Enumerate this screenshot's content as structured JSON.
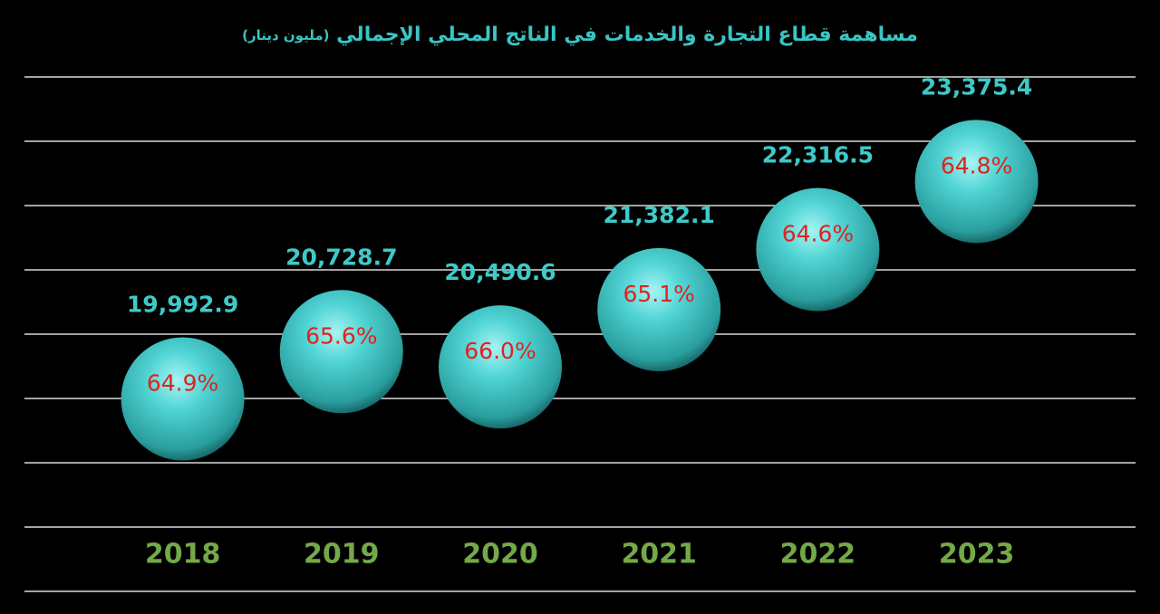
{
  "chart_data": {
    "type": "bubble",
    "title": "مساهمة قطاع التجارة والخدمات في الناتج المحلي الإجمالي",
    "subtitle": "(مليون دينار)",
    "categories": [
      "2018",
      "2019",
      "2020",
      "2021",
      "2022",
      "2023"
    ],
    "values": [
      19992.9,
      20728.7,
      20490.6,
      21382.1,
      22316.5,
      23375.4
    ],
    "value_labels": [
      "19,992.9",
      "20,728.7",
      "20,490.6",
      "21,382.1",
      "22,316.5",
      "23,375.4"
    ],
    "share_labels": [
      "64.9%",
      "65.6%",
      "66.0%",
      "65.1%",
      "64.6%",
      "64.8%"
    ],
    "color": "#3fc9c9",
    "ylim": [
      17000,
      25000
    ],
    "yticks": [
      17000,
      18000,
      19000,
      20000,
      21000,
      22000,
      23000,
      24000,
      25000
    ],
    "grid": true
  }
}
